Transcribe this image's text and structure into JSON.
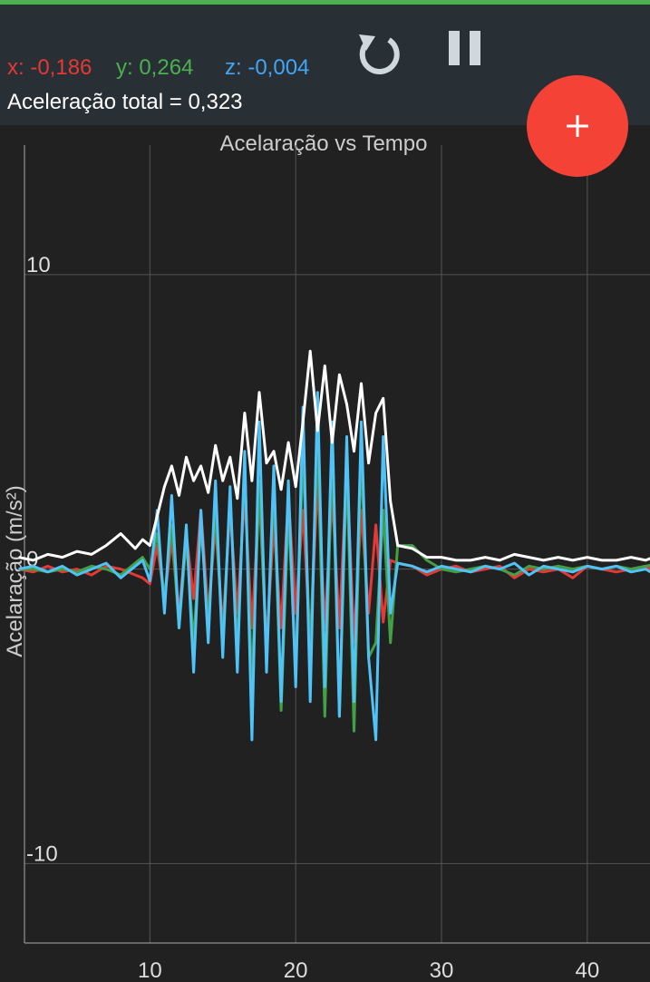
{
  "header": {
    "x": "x: -0,186",
    "y": "y: 0,264",
    "z": "z: -0,004",
    "total": "Aceleração total = 0,323"
  },
  "chart_data": {
    "type": "line",
    "title": "Acelaração vs Tempo",
    "y_label": "Acelaração (m/s²)",
    "x": [
      1,
      2,
      3,
      4,
      5,
      6,
      7,
      8,
      9,
      9.5,
      10,
      10.5,
      11,
      11.5,
      12,
      12.5,
      13,
      13.5,
      14,
      14.5,
      15,
      15.5,
      16,
      16.5,
      17,
      17.5,
      18,
      18.5,
      19,
      19.5,
      20,
      20.5,
      21,
      21.5,
      22,
      22.5,
      23,
      23.5,
      24,
      24.5,
      25,
      25.5,
      26,
      26.5,
      27,
      28,
      29,
      30,
      31,
      32,
      33,
      34,
      35,
      36,
      37,
      38,
      39,
      40,
      41,
      42,
      43,
      44,
      45
    ],
    "series": [
      {
        "color": "#e53935",
        "values": [
          0,
          -0.1,
          0.1,
          -0.1,
          0,
          -0.2,
          0.1,
          0,
          -0.2,
          -0.3,
          -0.5,
          0.8,
          -1.0,
          1.0,
          -1.5,
          1.2,
          -1.0,
          2.0,
          -1.5,
          1.5,
          -2.0,
          2.0,
          -1.5,
          2.5,
          -2.0,
          2.5,
          -2.5,
          1.5,
          -2.0,
          2.5,
          -1.5,
          2.0,
          -2.5,
          3.0,
          -2.0,
          2.5,
          -2.0,
          3.5,
          -2.5,
          2.0,
          -1.5,
          1.5,
          -1.8,
          0.3,
          0.2,
          0.1,
          -0.2,
          0,
          0.1,
          -0.1,
          0,
          0.1,
          -0.3,
          0,
          -0.1,
          0,
          -0.3,
          0.1,
          0,
          -0.1,
          0,
          0.1,
          -0.2
        ]
      },
      {
        "color": "#43a047",
        "values": [
          0,
          0,
          -0.1,
          0,
          -0.1,
          0.1,
          0,
          -0.2,
          0.2,
          0.4,
          0,
          1.2,
          -1.0,
          1.5,
          -2.0,
          1.0,
          -2.5,
          1.5,
          -1.8,
          2.0,
          -2.5,
          2.5,
          -2.8,
          3.5,
          -4.0,
          3.0,
          -3.0,
          2.8,
          -4.8,
          2.0,
          -3.5,
          4.0,
          -3.0,
          4.5,
          -5.0,
          4.0,
          -5.0,
          3.5,
          -5.5,
          4.0,
          -3.0,
          -2.5,
          2.0,
          -2.5,
          0.8,
          0.8,
          0.3,
          0,
          -0.1,
          0,
          0.1,
          0,
          -0.2,
          0.1,
          0,
          0.1,
          0,
          0.1,
          0,
          0.1,
          0,
          0.1,
          0.2
        ]
      },
      {
        "color": "#4fc3f7",
        "values": [
          0,
          0.1,
          -0.1,
          0.1,
          -0.2,
          0,
          0.2,
          -0.3,
          0.1,
          0.3,
          -0.4,
          2.0,
          -1.5,
          2.5,
          -2.0,
          1.5,
          -3.5,
          2.0,
          -2.5,
          3.0,
          -3.0,
          2.8,
          -3.5,
          4.0,
          -5.8,
          5.0,
          -3.5,
          3.5,
          -4.5,
          3.0,
          -4.0,
          5.5,
          -4.5,
          6.0,
          -4.0,
          5.0,
          -5.0,
          4.5,
          -4.5,
          5.0,
          -3.0,
          -5.8,
          4.5,
          -1.5,
          0.2,
          0.1,
          -0.1,
          0.1,
          0,
          -0.1,
          0.1,
          0,
          0.2,
          -0.2,
          0.1,
          0,
          -0.1,
          0.1,
          0,
          0.1,
          -0.1,
          0,
          -0.3
        ]
      },
      {
        "color": "#ffffff",
        "values": [
          0.4,
          0.3,
          0.5,
          0.4,
          0.6,
          0.5,
          0.8,
          1.2,
          0.7,
          1.0,
          0.8,
          1.8,
          2.8,
          3.5,
          2.5,
          3.8,
          3.0,
          3.5,
          2.6,
          4.2,
          3.0,
          3.8,
          2.4,
          5.3,
          3.0,
          6.0,
          3.6,
          4.0,
          2.7,
          4.3,
          2.8,
          5.0,
          7.4,
          4.7,
          6.9,
          4.3,
          6.6,
          5.6,
          4.0,
          6.3,
          3.6,
          5.3,
          5.8,
          2.3,
          0.8,
          0.7,
          0.4,
          0.4,
          0.3,
          0.3,
          0.4,
          0.3,
          0.5,
          0.4,
          0.3,
          0.4,
          0.3,
          0.4,
          0.3,
          0.3,
          0.4,
          0.3,
          0.5
        ]
      }
    ],
    "xlim": [
      1.4,
      44.3
    ],
    "ylim": [
      -12.7,
      14.4
    ],
    "xticks": [
      10,
      20,
      30,
      40
    ],
    "yticks": [
      -10,
      0,
      10
    ],
    "grid": true
  }
}
